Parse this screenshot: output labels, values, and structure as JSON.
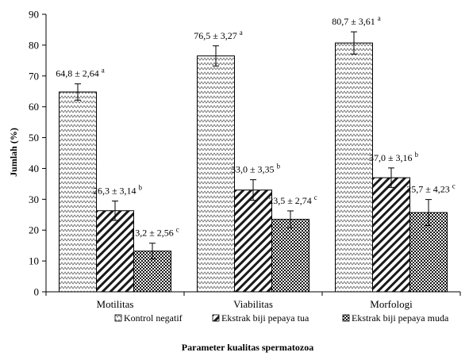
{
  "chart_data": {
    "type": "bar",
    "title": "",
    "xlabel": "Parameter kualitas spermatozoa",
    "ylabel": "Jumlah (%)",
    "ylim": [
      0,
      90
    ],
    "yticks": [
      0,
      10,
      20,
      30,
      40,
      50,
      60,
      70,
      80,
      90
    ],
    "grid": false,
    "legend_position": "bottom",
    "categories": [
      "Motilitas",
      "Viabilitas",
      "Morfologi"
    ],
    "series": [
      {
        "name": "Kontrol negatif",
        "pattern": "zigzag",
        "values": [
          64.8,
          76.5,
          80.7
        ],
        "errors": [
          2.64,
          3.27,
          3.61
        ],
        "labels": [
          "64,8 ± 2,64",
          "76,5 ± 3,27",
          "80,7 ± 3,61"
        ],
        "superscripts": [
          "a",
          "a",
          "a"
        ]
      },
      {
        "name": "Ekstrak biji pepaya tua",
        "pattern": "diagonal",
        "values": [
          26.3,
          33.0,
          37.0
        ],
        "errors": [
          3.14,
          3.35,
          3.16
        ],
        "labels": [
          "26,3 ± 3,14",
          "33,0 ± 3,35",
          "37,0 ± 3,16"
        ],
        "superscripts": [
          "b",
          "b",
          "b"
        ]
      },
      {
        "name": "Ekstrak biji pepaya muda",
        "pattern": "checker",
        "values": [
          13.2,
          23.5,
          25.7
        ],
        "errors": [
          2.56,
          2.74,
          4.23
        ],
        "labels": [
          "13,2 ± 2,56",
          "23,5 ± 2,74",
          "25,7 ± 4,23"
        ],
        "superscripts": [
          "c",
          "c",
          "c"
        ]
      }
    ]
  }
}
